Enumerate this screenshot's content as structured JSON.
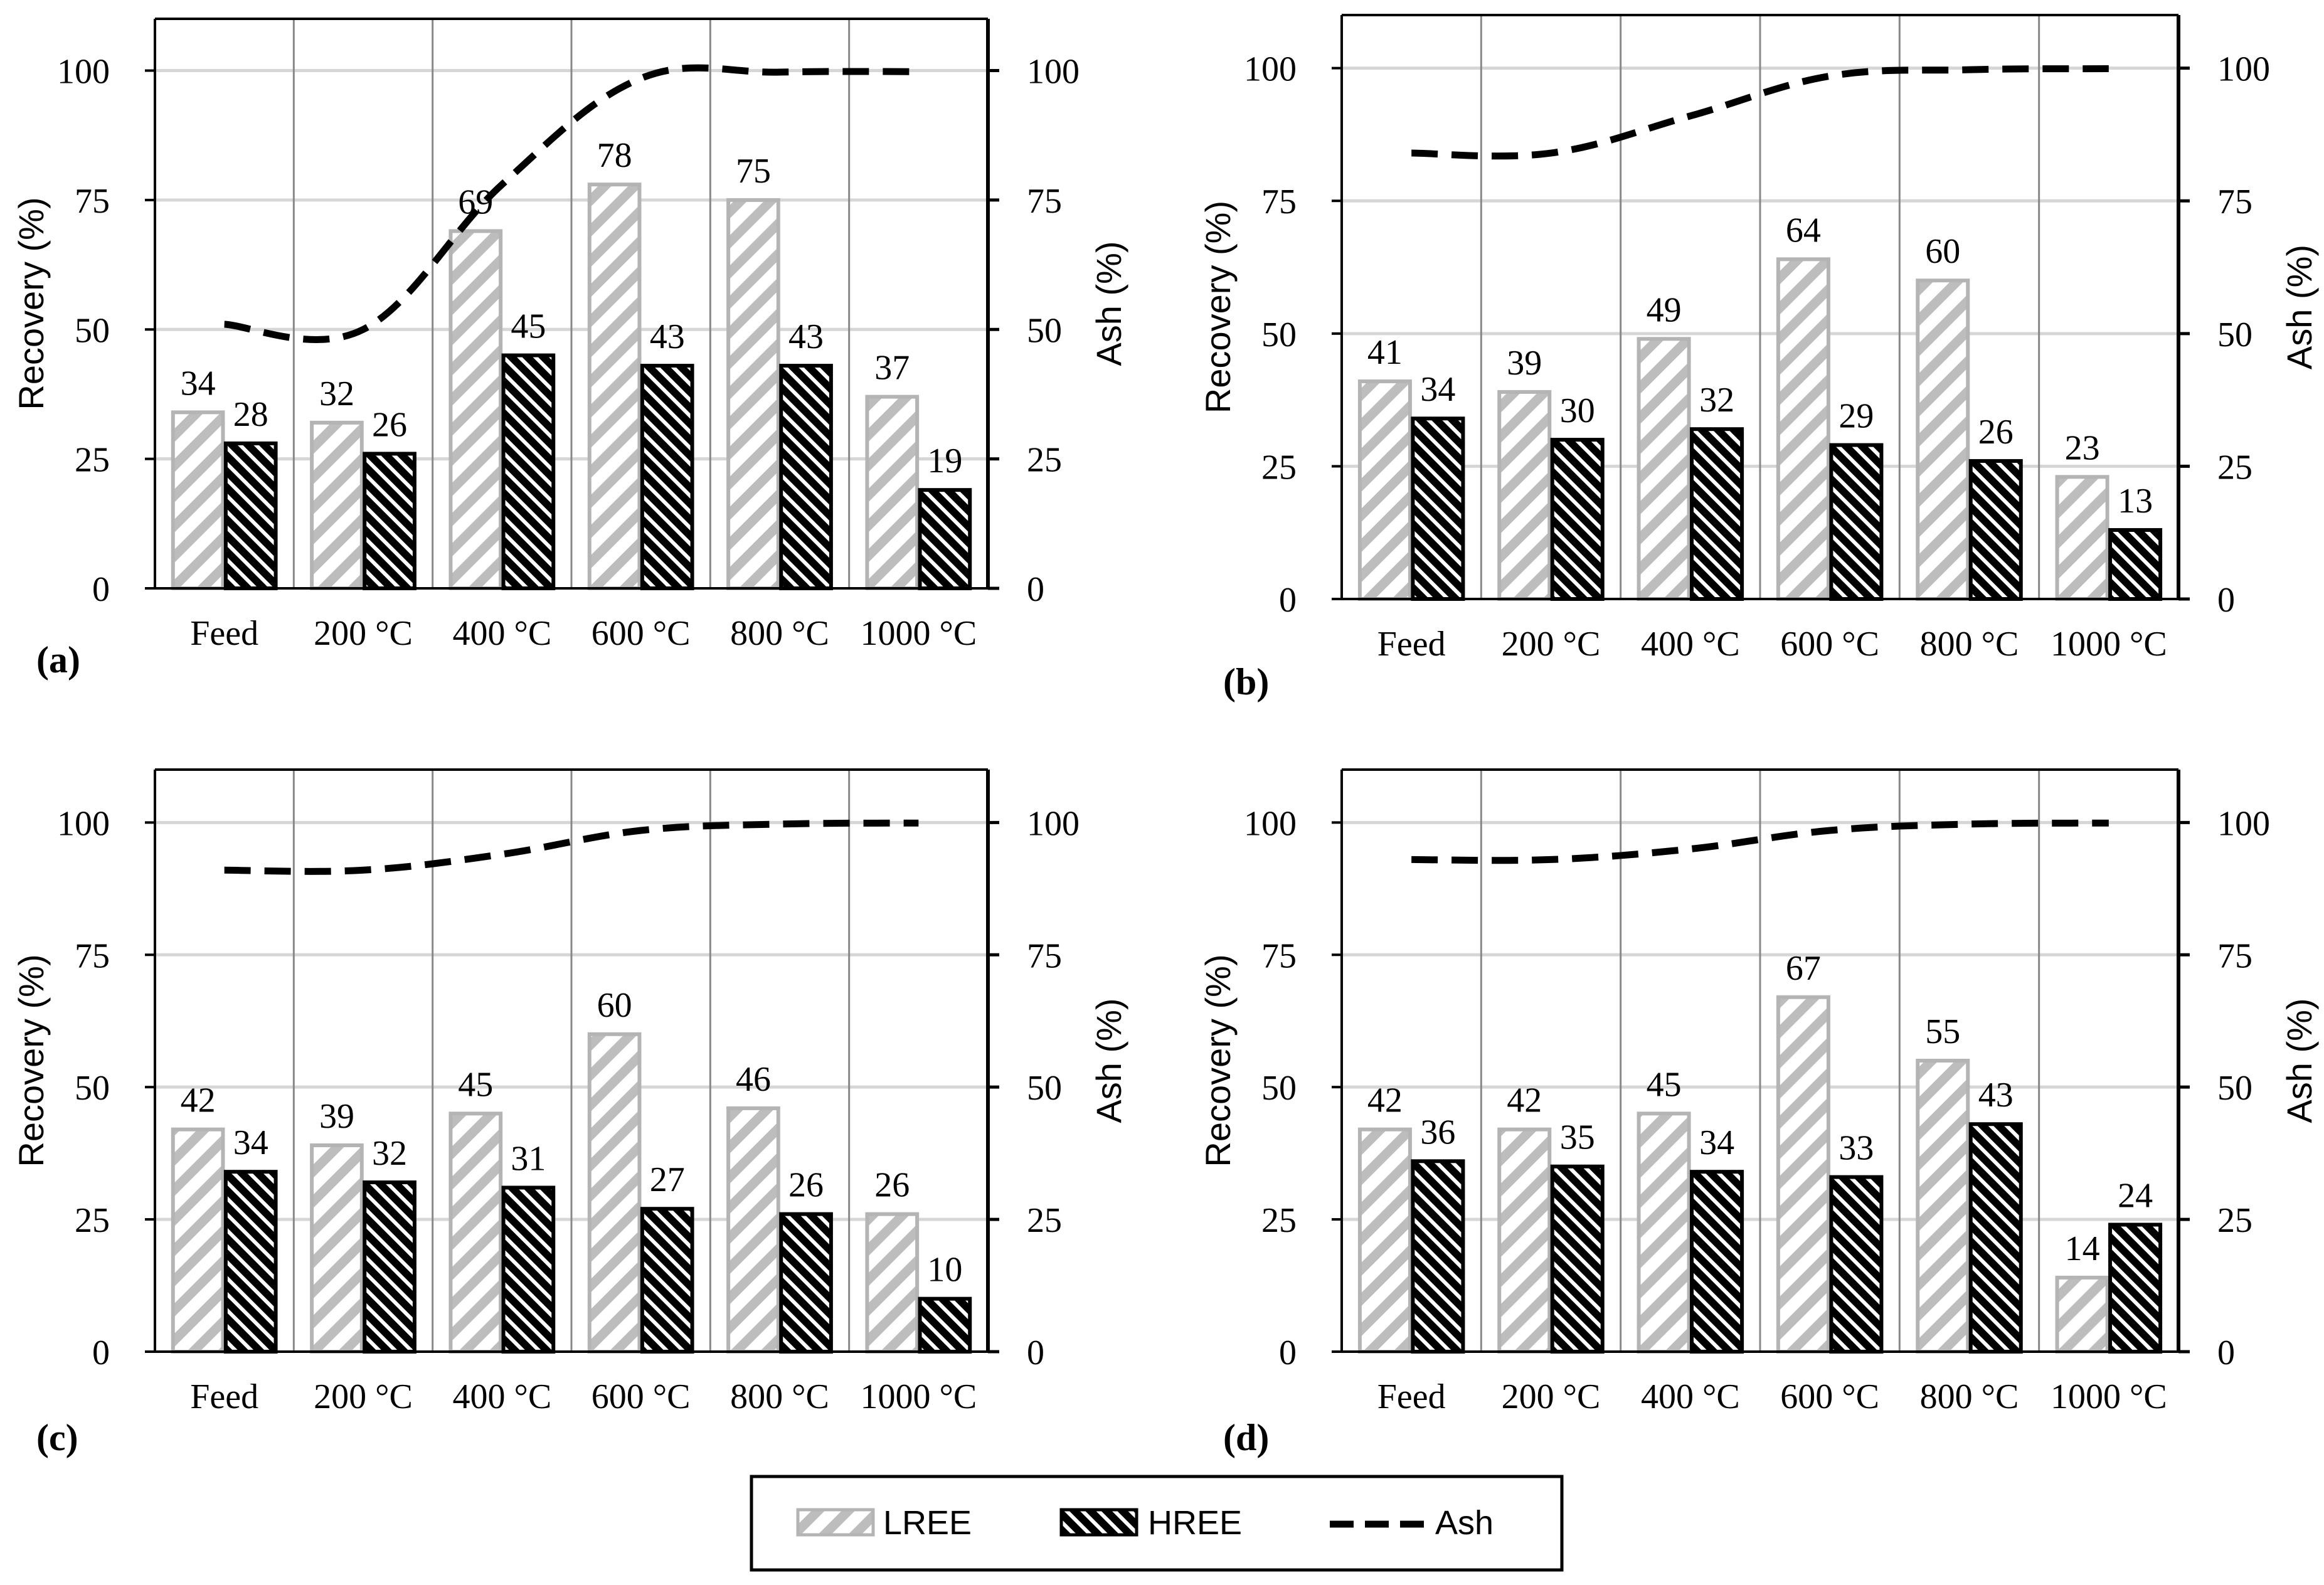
{
  "figure": {
    "panels": [
      {
        "panel_label": "(a)"
      },
      {
        "panel_label": "(b)"
      },
      {
        "panel_label": "(c)"
      },
      {
        "panel_label": "(d)"
      }
    ],
    "legend": {
      "items": [
        {
          "name": "LREE",
          "style": "light-diagonal-hatch"
        },
        {
          "name": "HREE",
          "style": "dark-cross-hatch"
        },
        {
          "name": "Ash",
          "style": "black-dashed-line"
        }
      ]
    }
  },
  "colors": {
    "lree_stroke": "#b4b4b4",
    "lree_hatch": "#bdbdbd",
    "hree_fill": "#000000",
    "ash_line": "#000000",
    "grid": "#d6d6d6",
    "separator": "#888888"
  },
  "chart_data": [
    {
      "type": "bar",
      "panel_label": "(a)",
      "categories": [
        "Feed",
        "200 °C",
        "400 °C",
        "600 °C",
        "800 °C",
        "1000 °C"
      ],
      "series": [
        {
          "name": "LREE",
          "values": [
            34,
            32,
            69,
            78,
            75,
            37
          ]
        },
        {
          "name": "HREE",
          "values": [
            28,
            26,
            45,
            43,
            43,
            19
          ]
        },
        {
          "name": "Ash",
          "kind": "line",
          "axis": "right",
          "values": [
            51,
            50,
            78,
            98.5,
            99.7,
            99.8
          ]
        }
      ],
      "ylabel": "Recovery (%)",
      "y2label": "Ash (%)",
      "ylim": [
        0,
        110
      ],
      "y2lim": [
        0,
        110
      ],
      "yticks": [
        0,
        25,
        50,
        75,
        100
      ],
      "y2ticks": [
        0,
        25,
        50,
        75,
        100
      ],
      "grid": true
    },
    {
      "type": "bar",
      "panel_label": "(b)",
      "categories": [
        "Feed",
        "200 °C",
        "400 °C",
        "600 °C",
        "800 °C",
        "1000 °C"
      ],
      "series": [
        {
          "name": "LREE",
          "values": [
            41,
            39,
            49,
            64,
            60,
            23
          ]
        },
        {
          "name": "HREE",
          "values": [
            34,
            30,
            32,
            29,
            26,
            13
          ]
        },
        {
          "name": "Ash",
          "kind": "line",
          "axis": "right",
          "values": [
            84,
            84,
            91,
            98.5,
            99.7,
            99.9
          ]
        }
      ],
      "ylabel": "Recovery (%)",
      "y2label": "Ash (%)",
      "ylim": [
        0,
        110
      ],
      "y2lim": [
        0,
        110
      ],
      "yticks": [
        0,
        25,
        50,
        75,
        100
      ],
      "y2ticks": [
        0,
        25,
        50,
        75,
        100
      ],
      "grid": true
    },
    {
      "type": "bar",
      "panel_label": "(c)",
      "categories": [
        "Feed",
        "200 °C",
        "400 °C",
        "600 °C",
        "800 °C",
        "1000 °C"
      ],
      "series": [
        {
          "name": "LREE",
          "values": [
            42,
            39,
            45,
            60,
            46,
            26
          ]
        },
        {
          "name": "HREE",
          "values": [
            34,
            32,
            31,
            27,
            26,
            10
          ]
        },
        {
          "name": "Ash",
          "kind": "line",
          "axis": "right",
          "values": [
            91,
            91,
            94,
            98.5,
            99.7,
            99.9
          ]
        }
      ],
      "ylabel": "Recovery (%)",
      "y2label": "Ash (%)",
      "ylim": [
        0,
        110
      ],
      "y2lim": [
        0,
        110
      ],
      "yticks": [
        0,
        25,
        50,
        75,
        100
      ],
      "y2ticks": [
        0,
        25,
        50,
        75,
        100
      ],
      "grid": true
    },
    {
      "type": "bar",
      "panel_label": "(d)",
      "categories": [
        "Feed",
        "200 °C",
        "400 °C",
        "600 °C",
        "800 °C",
        "1000 °C"
      ],
      "series": [
        {
          "name": "LREE",
          "values": [
            42,
            42,
            45,
            67,
            55,
            14
          ]
        },
        {
          "name": "HREE",
          "values": [
            36,
            35,
            34,
            33,
            43,
            24
          ]
        },
        {
          "name": "Ash",
          "kind": "line",
          "axis": "right",
          "values": [
            93,
            93,
            95,
            98.5,
            99.7,
            99.9
          ]
        }
      ],
      "ylabel": "Recovery (%)",
      "y2label": "Ash (%)",
      "ylim": [
        0,
        110
      ],
      "y2lim": [
        0,
        110
      ],
      "yticks": [
        0,
        25,
        50,
        75,
        100
      ],
      "y2ticks": [
        0,
        25,
        50,
        75,
        100
      ],
      "grid": true
    }
  ]
}
